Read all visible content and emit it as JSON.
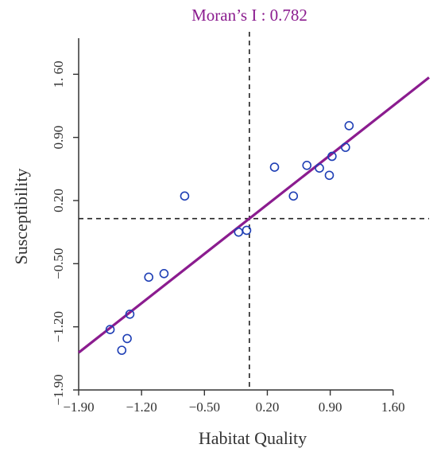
{
  "chart_data": {
    "type": "scatter",
    "title": "Moran’s I : 0.782",
    "xlabel": "Habitat Quality",
    "ylabel": "Susceptibility",
    "xlim": [
      -1.9,
      2.0
    ],
    "ylim": [
      -1.9,
      2.0
    ],
    "xticks": [
      -1.9,
      -1.2,
      -0.5,
      0.2,
      0.9,
      1.6
    ],
    "yticks": [
      -1.9,
      -1.2,
      -0.5,
      0.2,
      0.9,
      1.6
    ],
    "xtick_labels": [
      "−1.90",
      "−1.20",
      "−0.50",
      "0.20",
      "0.90",
      "1.60"
    ],
    "ytick_labels": [
      "−1.90",
      "−1.20",
      "−0.50",
      "0.20",
      "0.90",
      "1. 60"
    ],
    "reference_lines": {
      "x": 0.0,
      "y": 0.0
    },
    "regression_line": {
      "slope": 0.782,
      "intercept": 0.0
    },
    "points": [
      {
        "x": -1.55,
        "y": -1.23
      },
      {
        "x": -1.42,
        "y": -1.46
      },
      {
        "x": -1.36,
        "y": -1.33
      },
      {
        "x": -1.33,
        "y": -1.06
      },
      {
        "x": -1.12,
        "y": -0.65
      },
      {
        "x": -0.95,
        "y": -0.61
      },
      {
        "x": -0.72,
        "y": 0.25
      },
      {
        "x": -0.12,
        "y": -0.15
      },
      {
        "x": -0.03,
        "y": -0.13
      },
      {
        "x": 0.28,
        "y": 0.57
      },
      {
        "x": 0.49,
        "y": 0.25
      },
      {
        "x": 0.64,
        "y": 0.59
      },
      {
        "x": 0.78,
        "y": 0.56
      },
      {
        "x": 0.89,
        "y": 0.48
      },
      {
        "x": 0.92,
        "y": 0.69
      },
      {
        "x": 1.07,
        "y": 0.79
      },
      {
        "x": 1.11,
        "y": 1.03
      }
    ],
    "colors": {
      "title": "#8B1C8F",
      "regression_line": "#8B1C8F",
      "points": "#1F3FB5",
      "axis": "#333333",
      "reference_lines": "#222222"
    }
  }
}
